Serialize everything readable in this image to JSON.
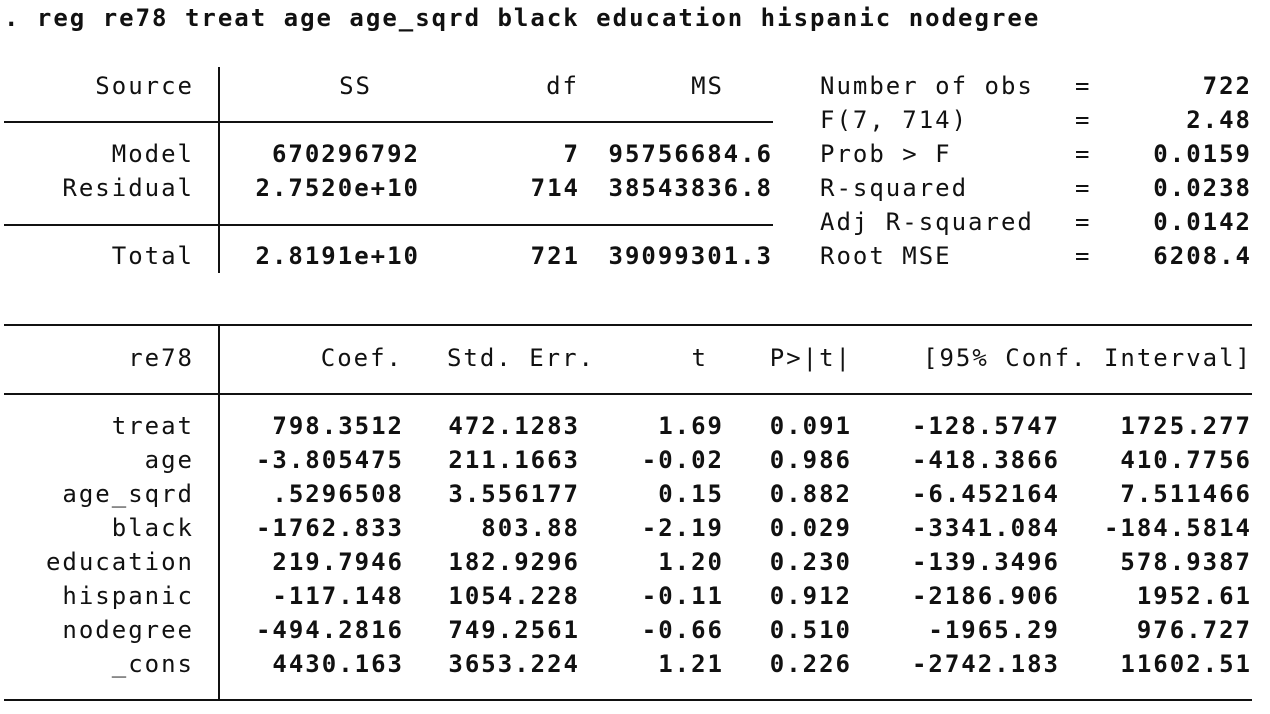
{
  "command": ". reg re78 treat age age_sqrd black education hispanic nodegree",
  "anova": {
    "headers": [
      "Source",
      "SS",
      "df",
      "MS"
    ],
    "rows": [
      {
        "source": "Model",
        "ss": "670296792",
        "df": "7",
        "ms": "95756684.6"
      },
      {
        "source": "Residual",
        "ss": "2.7520e+10",
        "df": "714",
        "ms": "38543836.8"
      },
      {
        "source": "Total",
        "ss": "2.8191e+10",
        "df": "721",
        "ms": "39099301.3"
      }
    ]
  },
  "stats": [
    {
      "label": "Number of obs",
      "eq": "=",
      "value": "722"
    },
    {
      "label": "F(7, 714)",
      "eq": "=",
      "value": "2.48"
    },
    {
      "label": "Prob > F",
      "eq": "=",
      "value": "0.0159"
    },
    {
      "label": "R-squared",
      "eq": "=",
      "value": "0.0238"
    },
    {
      "label": "Adj R-squared",
      "eq": "=",
      "value": "0.0142"
    },
    {
      "label": "Root MSE",
      "eq": "=",
      "value": "6208.4"
    }
  ],
  "coef_table": {
    "depvar": "re78",
    "headers": [
      "Coef.",
      "Std. Err.",
      "t",
      "P>|t|",
      "[95% Conf. Interval]"
    ],
    "rows": [
      {
        "var": "treat",
        "coef": "798.3512",
        "se": "472.1283",
        "t": "1.69",
        "p": "0.091",
        "lo": "-128.5747",
        "hi": "1725.277"
      },
      {
        "var": "age",
        "coef": "-3.805475",
        "se": "211.1663",
        "t": "-0.02",
        "p": "0.986",
        "lo": "-418.3866",
        "hi": "410.7756"
      },
      {
        "var": "age_sqrd",
        "coef": ".5296508",
        "se": "3.556177",
        "t": "0.15",
        "p": "0.882",
        "lo": "-6.452164",
        "hi": "7.511466"
      },
      {
        "var": "black",
        "coef": "-1762.833",
        "se": "803.88",
        "t": "-2.19",
        "p": "0.029",
        "lo": "-3341.084",
        "hi": "-184.5814"
      },
      {
        "var": "education",
        "coef": "219.7946",
        "se": "182.9296",
        "t": "1.20",
        "p": "0.230",
        "lo": "-139.3496",
        "hi": "578.9387"
      },
      {
        "var": "hispanic",
        "coef": "-117.148",
        "se": "1054.228",
        "t": "-0.11",
        "p": "0.912",
        "lo": "-2186.906",
        "hi": "1952.61"
      },
      {
        "var": "nodegree",
        "coef": "-494.2816",
        "se": "749.2561",
        "t": "-0.66",
        "p": "0.510",
        "lo": "-1965.29",
        "hi": "976.727"
      },
      {
        "var": "_cons",
        "coef": "4430.163",
        "se": "3653.224",
        "t": "1.21",
        "p": "0.226",
        "lo": "-2742.183",
        "hi": "11602.51"
      }
    ]
  }
}
